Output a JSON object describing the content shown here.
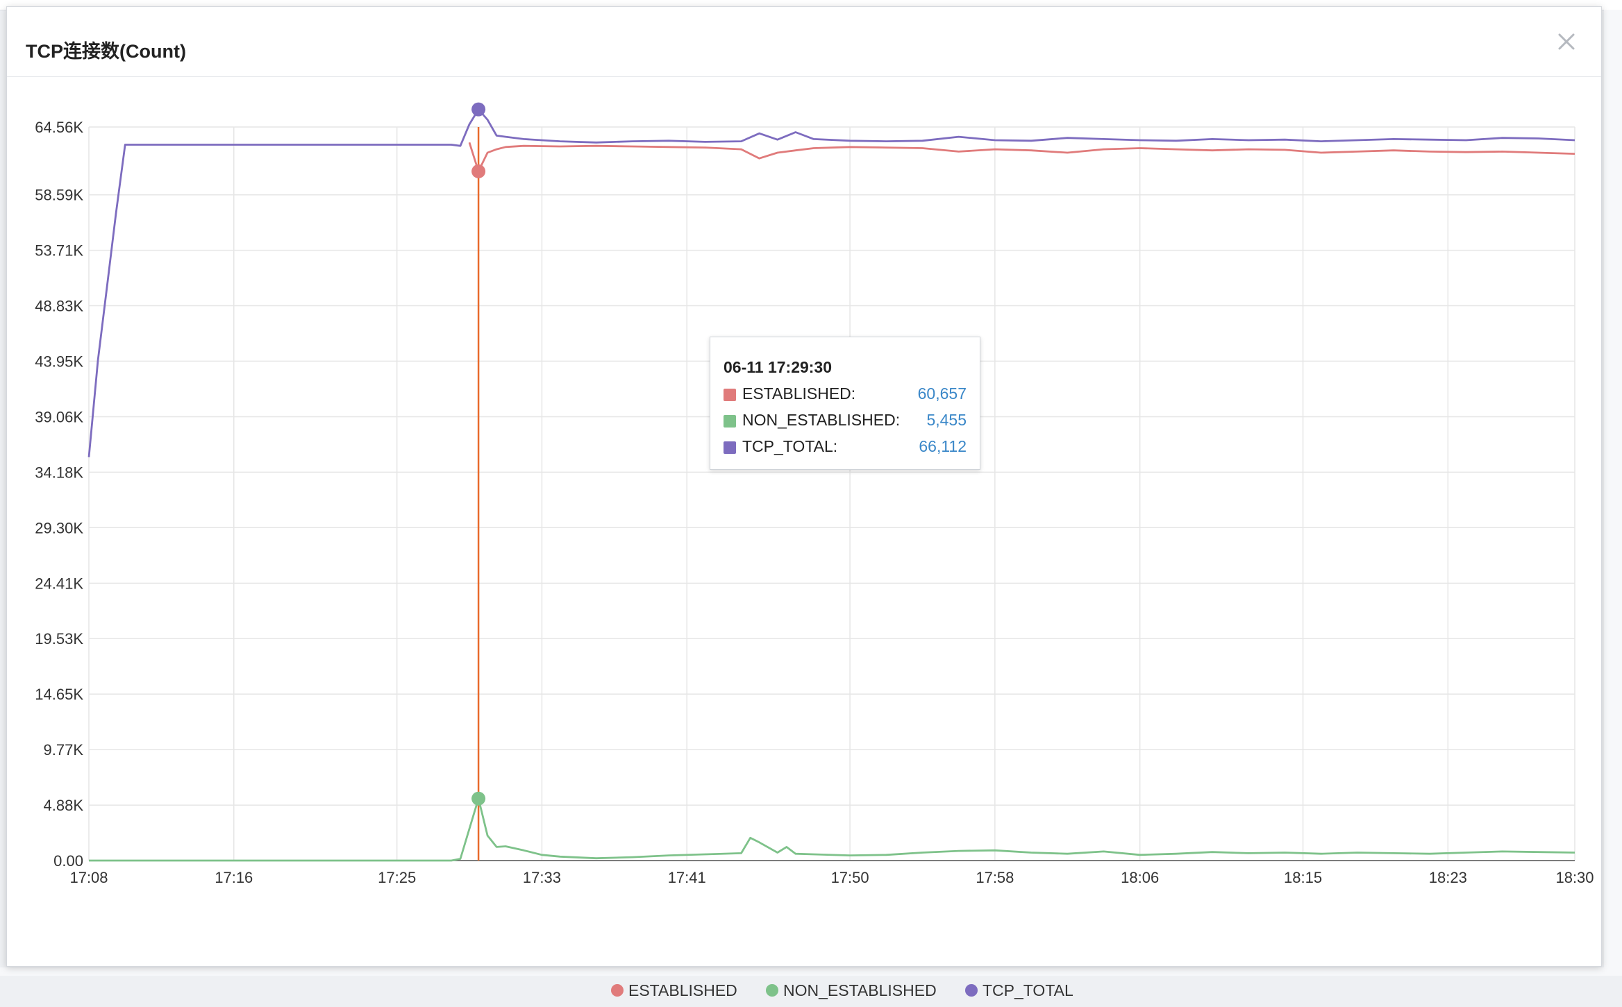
{
  "modal": {
    "title": "TCP连接数(Count)"
  },
  "tooltip": {
    "time": "06-11 17:29:30",
    "rows": [
      {
        "label": "ESTABLISHED:",
        "value": "60,657",
        "color": "#e07b7b"
      },
      {
        "label": "NON_ESTABLISHED:",
        "value": "5,455",
        "color": "#7ec28a"
      },
      {
        "label": "TCP_TOTAL:",
        "value": "66,112",
        "color": "#7d6cbf"
      }
    ]
  },
  "legend": [
    {
      "label": "ESTABLISHED",
      "color": "#e07b7b"
    },
    {
      "label": "NON_ESTABLISHED",
      "color": "#7ec28a"
    },
    {
      "label": "TCP_TOTAL",
      "color": "#7d6cbf"
    }
  ],
  "chart_data": {
    "type": "line",
    "x_ticks": [
      "17:08",
      "17:16",
      "17:25",
      "17:33",
      "17:41",
      "17:50",
      "17:58",
      "18:06",
      "18:15",
      "18:23",
      "18:30"
    ],
    "y_ticks": [
      "0.00",
      "4.88K",
      "9.77K",
      "14.65K",
      "19.53K",
      "24.41K",
      "29.30K",
      "34.18K",
      "39.06K",
      "43.95K",
      "48.83K",
      "53.71K",
      "58.59K",
      "64.56K"
    ],
    "xlim": [
      "17:08",
      "18:30"
    ],
    "ylim": [
      0,
      64560
    ],
    "grid": true,
    "legend_position": "bottom-center",
    "highlight_time": "17:29:30",
    "series": [
      {
        "name": "TCP_TOTAL",
        "color": "#7d6cbf",
        "points": [
          [
            "17:08",
            35500
          ],
          [
            "17:08:30",
            44000
          ],
          [
            "17:09",
            50500
          ],
          [
            "17:09:30",
            57000
          ],
          [
            "17:10",
            63000
          ],
          [
            "17:15",
            63000
          ],
          [
            "17:20",
            63000
          ],
          [
            "17:25",
            63000
          ],
          [
            "17:28",
            63000
          ],
          [
            "17:28:30",
            62900
          ],
          [
            "17:29",
            64800
          ],
          [
            "17:29:30",
            66112
          ],
          [
            "17:30",
            65200
          ],
          [
            "17:30:30",
            63800
          ],
          [
            "17:31",
            63700
          ],
          [
            "17:32",
            63500
          ],
          [
            "17:34",
            63300
          ],
          [
            "17:36",
            63200
          ],
          [
            "17:38",
            63300
          ],
          [
            "17:40",
            63350
          ],
          [
            "17:42",
            63250
          ],
          [
            "17:44",
            63300
          ],
          [
            "17:45",
            64000
          ],
          [
            "17:46",
            63450
          ],
          [
            "17:47",
            64100
          ],
          [
            "17:48",
            63500
          ],
          [
            "17:50",
            63350
          ],
          [
            "17:52",
            63300
          ],
          [
            "17:54",
            63350
          ],
          [
            "17:56",
            63700
          ],
          [
            "17:58",
            63400
          ],
          [
            "18:00",
            63350
          ],
          [
            "18:02",
            63600
          ],
          [
            "18:04",
            63500
          ],
          [
            "18:06",
            63400
          ],
          [
            "18:08",
            63350
          ],
          [
            "18:10",
            63500
          ],
          [
            "18:12",
            63400
          ],
          [
            "18:14",
            63450
          ],
          [
            "18:16",
            63300
          ],
          [
            "18:18",
            63400
          ],
          [
            "18:20",
            63500
          ],
          [
            "18:22",
            63450
          ],
          [
            "18:24",
            63400
          ],
          [
            "18:26",
            63600
          ],
          [
            "18:28",
            63550
          ],
          [
            "18:30",
            63400
          ]
        ]
      },
      {
        "name": "ESTABLISHED",
        "color": "#e07b7b",
        "points": [
          [
            "17:29",
            63200
          ],
          [
            "17:29:30",
            60657
          ],
          [
            "17:30",
            62300
          ],
          [
            "17:30:30",
            62600
          ],
          [
            "17:31",
            62800
          ],
          [
            "17:32",
            62900
          ],
          [
            "17:34",
            62850
          ],
          [
            "17:36",
            62900
          ],
          [
            "17:38",
            62850
          ],
          [
            "17:40",
            62800
          ],
          [
            "17:42",
            62750
          ],
          [
            "17:44",
            62600
          ],
          [
            "17:45",
            61800
          ],
          [
            "17:46",
            62300
          ],
          [
            "17:47",
            62500
          ],
          [
            "17:48",
            62700
          ],
          [
            "17:50",
            62800
          ],
          [
            "17:52",
            62750
          ],
          [
            "17:54",
            62700
          ],
          [
            "17:56",
            62400
          ],
          [
            "17:58",
            62600
          ],
          [
            "18:00",
            62500
          ],
          [
            "18:02",
            62300
          ],
          [
            "18:04",
            62600
          ],
          [
            "18:06",
            62700
          ],
          [
            "18:08",
            62600
          ],
          [
            "18:10",
            62500
          ],
          [
            "18:12",
            62600
          ],
          [
            "18:14",
            62550
          ],
          [
            "18:16",
            62300
          ],
          [
            "18:18",
            62400
          ],
          [
            "18:20",
            62500
          ],
          [
            "18:22",
            62400
          ],
          [
            "18:24",
            62350
          ],
          [
            "18:26",
            62400
          ],
          [
            "18:28",
            62300
          ],
          [
            "18:30",
            62200
          ]
        ]
      },
      {
        "name": "NON_ESTABLISHED",
        "color": "#7ec28a",
        "points": [
          [
            "17:08",
            0
          ],
          [
            "17:10",
            0
          ],
          [
            "17:15",
            0
          ],
          [
            "17:20",
            0
          ],
          [
            "17:25",
            0
          ],
          [
            "17:28",
            0
          ],
          [
            "17:28:30",
            150
          ],
          [
            "17:29:30",
            5455
          ],
          [
            "17:30",
            2200
          ],
          [
            "17:30:30",
            1200
          ],
          [
            "17:31",
            1250
          ],
          [
            "17:32",
            900
          ],
          [
            "17:33",
            500
          ],
          [
            "17:34",
            350
          ],
          [
            "17:36",
            200
          ],
          [
            "17:38",
            300
          ],
          [
            "17:40",
            450
          ],
          [
            "17:42",
            550
          ],
          [
            "17:44",
            650
          ],
          [
            "17:44:30",
            2000
          ],
          [
            "17:45",
            1600
          ],
          [
            "17:46",
            700
          ],
          [
            "17:46:30",
            1200
          ],
          [
            "17:47",
            600
          ],
          [
            "17:48",
            550
          ],
          [
            "17:50",
            450
          ],
          [
            "17:52",
            500
          ],
          [
            "17:54",
            700
          ],
          [
            "17:56",
            850
          ],
          [
            "17:58",
            900
          ],
          [
            "18:00",
            700
          ],
          [
            "18:02",
            600
          ],
          [
            "18:04",
            800
          ],
          [
            "18:06",
            500
          ],
          [
            "18:08",
            600
          ],
          [
            "18:10",
            750
          ],
          [
            "18:12",
            650
          ],
          [
            "18:14",
            700
          ],
          [
            "18:16",
            600
          ],
          [
            "18:18",
            700
          ],
          [
            "18:20",
            650
          ],
          [
            "18:22",
            600
          ],
          [
            "18:24",
            700
          ],
          [
            "18:26",
            800
          ],
          [
            "18:28",
            750
          ],
          [
            "18:30",
            700
          ]
        ]
      }
    ]
  }
}
